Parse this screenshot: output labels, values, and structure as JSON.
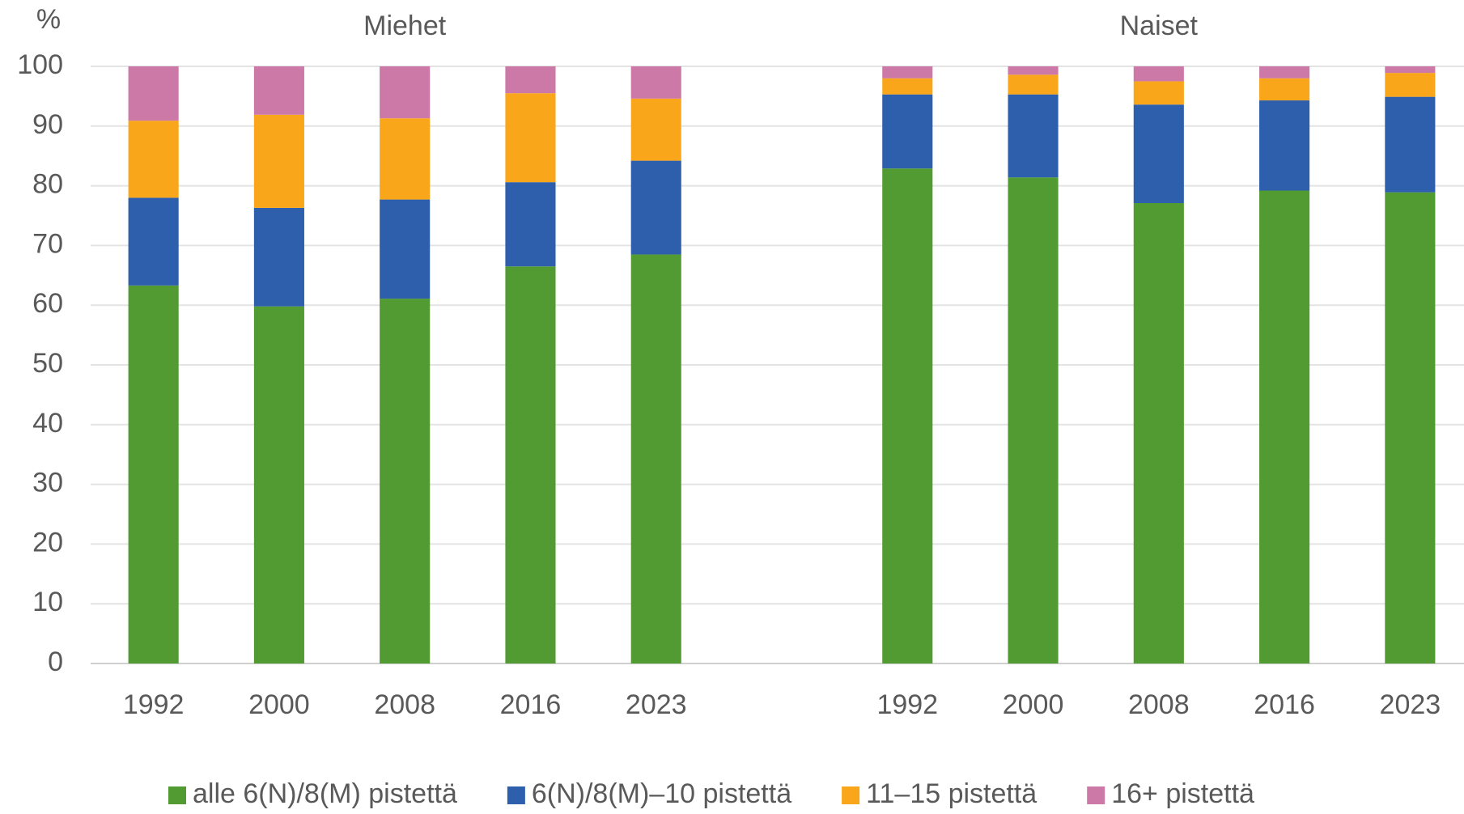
{
  "chart_data": {
    "type": "stacked_bar",
    "y_label": "%",
    "panels": [
      "Miehet",
      "Naiset"
    ],
    "categories": [
      "1992",
      "2000",
      "2008",
      "2016",
      "2023",
      "1992",
      "2000",
      "2008",
      "2016",
      "2023"
    ],
    "series": [
      {
        "name": "alle 6(N)/8(M) pistettä",
        "color": "#529b32",
        "values": [
          63.3,
          59.8,
          61.1,
          66.5,
          68.5,
          82.9,
          81.4,
          77.1,
          79.2,
          78.9
        ]
      },
      {
        "name": "6(N)/8(M)–10 pistettä",
        "color": "#2e5fac",
        "values": [
          14.7,
          16.5,
          16.6,
          14.1,
          15.7,
          12.4,
          13.9,
          16.5,
          15.1,
          16.0
        ]
      },
      {
        "name": "11–15 pistettä",
        "color": "#f9a61a",
        "values": [
          12.9,
          15.6,
          13.6,
          14.9,
          10.4,
          2.7,
          3.3,
          3.9,
          3.7,
          4.0
        ]
      },
      {
        "name": "16+ pistettä",
        "color": "#cc79a7",
        "values": [
          9.1,
          8.1,
          8.7,
          4.5,
          5.4,
          2.0,
          1.4,
          2.5,
          2.0,
          1.1
        ]
      }
    ],
    "ylim": [
      0,
      100
    ],
    "yticks": [
      0,
      10,
      20,
      30,
      40,
      50,
      60,
      70,
      80,
      90,
      100
    ],
    "grid": true,
    "legend": "bottom"
  }
}
